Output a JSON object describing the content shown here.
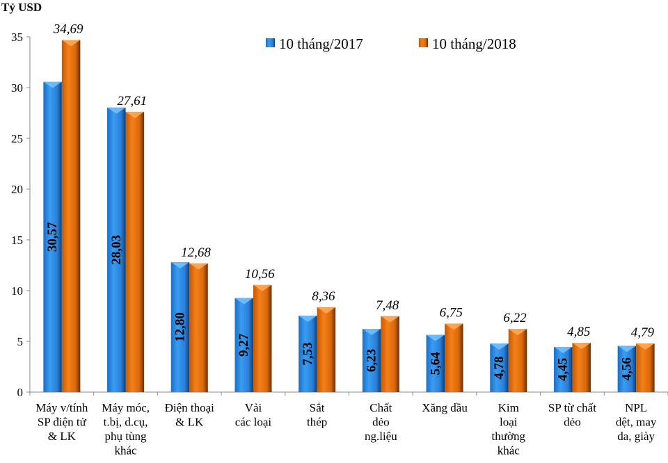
{
  "chart_data": {
    "type": "bar",
    "ylabel": "Tỷ USD",
    "ylim": [
      0,
      35
    ],
    "yticks": [
      0,
      5,
      10,
      15,
      20,
      25,
      30,
      35
    ],
    "grid": false,
    "legend_position": "top-right",
    "categories": [
      [
        "Máy v/tính",
        "SP điện tử",
        "& LK"
      ],
      [
        "Máy móc,",
        "t.bị, d.cụ,",
        "phụ tùng",
        "khác"
      ],
      [
        "Điện thoại",
        "& LK"
      ],
      [
        "Vải",
        "các loại"
      ],
      [
        "Sắt",
        "thép"
      ],
      [
        "Chất",
        "dẻo",
        "ng.liệu"
      ],
      [
        "Xăng dầu"
      ],
      [
        "Kim",
        "loại",
        "thường",
        "khác"
      ],
      [
        "SP từ chất",
        "dẻo"
      ],
      [
        "NPL",
        "dệt, may",
        "da, giày"
      ]
    ],
    "series": [
      {
        "name": "10 tháng/2017",
        "color": "#2E8CE6",
        "values": [
          30.57,
          28.03,
          12.8,
          9.27,
          7.53,
          6.23,
          5.64,
          4.78,
          4.45,
          4.56
        ],
        "labels": [
          "30,57",
          "28,03",
          "12,80",
          "9,27",
          "7,53",
          "6,23",
          "5,64",
          "4,78",
          "4,45",
          "4,56"
        ]
      },
      {
        "name": "10 tháng/2018",
        "color": "#E8720C",
        "values": [
          34.69,
          27.61,
          12.68,
          10.56,
          8.36,
          7.48,
          6.75,
          6.22,
          4.85,
          4.79
        ],
        "labels": [
          "34,69",
          "27,61",
          "12,68",
          "10,56",
          "8,36",
          "7,48",
          "6,75",
          "6,22",
          "4,85",
          "4,79"
        ]
      }
    ]
  }
}
